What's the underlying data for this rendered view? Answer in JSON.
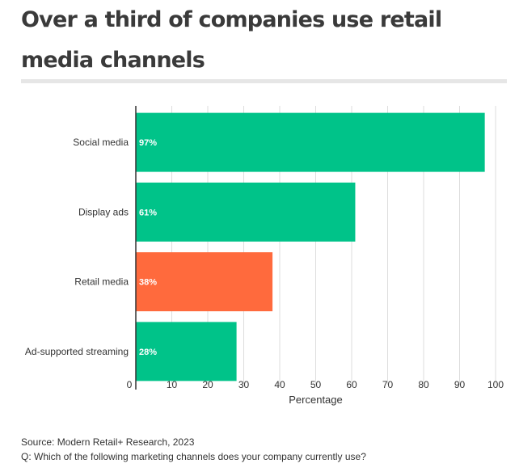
{
  "title": "Over a third of companies use retail media channels",
  "footer": {
    "source": "Source: Modern Retail+ Research, 2023",
    "question": "Q: Which of the following marketing channels does your company currently use?"
  },
  "chart_data": {
    "type": "bar",
    "orientation": "horizontal",
    "categories": [
      "Social media",
      "Display ads",
      "Retail media",
      "Ad-supported streaming"
    ],
    "values": [
      97,
      61,
      38,
      28
    ],
    "data_labels": [
      "97%",
      "61%",
      "38%",
      "28%"
    ],
    "xlabel": "Percentage",
    "xlim": [
      0,
      100
    ],
    "xticks": [
      0,
      10,
      20,
      30,
      40,
      50,
      60,
      70,
      80,
      90,
      100
    ],
    "grid": true,
    "colors": {
      "default": "#00c389",
      "highlight": "#ff6a3d",
      "highlight_category": "Retail media",
      "grid": "#dddddd",
      "axis": "#333333"
    }
  }
}
